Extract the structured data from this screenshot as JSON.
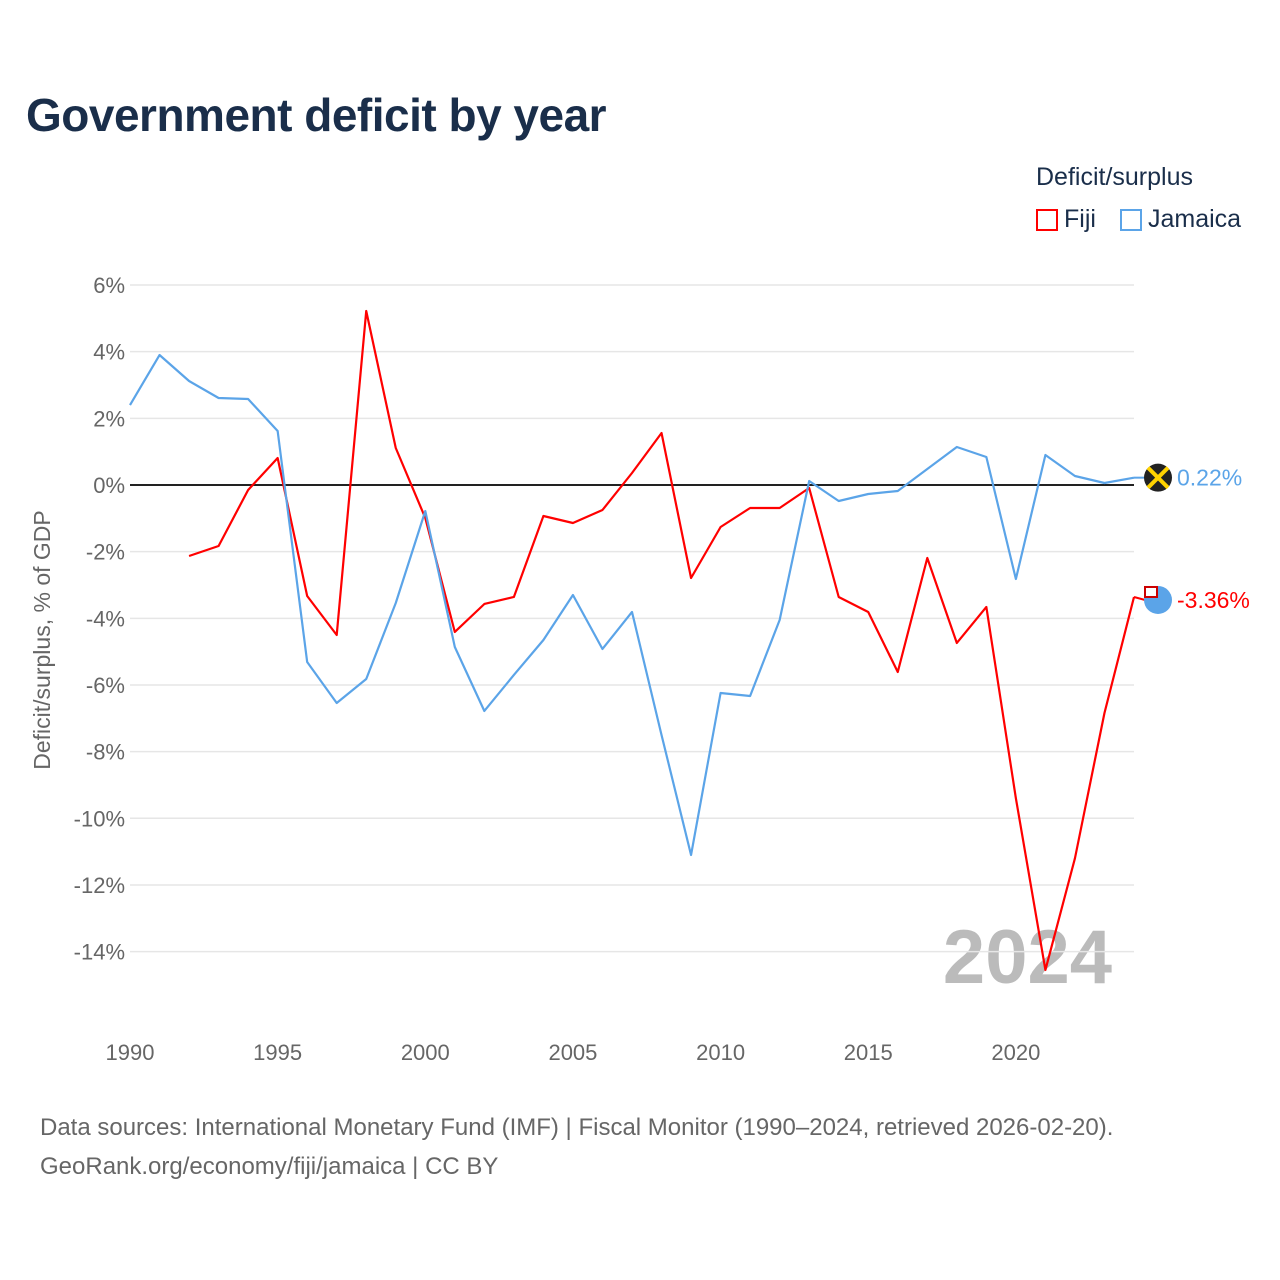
{
  "title": "Government deficit by year",
  "legend": {
    "title": "Deficit/surplus",
    "items": [
      {
        "name": "Fiji",
        "color": "#ff0000"
      },
      {
        "name": "Jamaica",
        "color": "#5ba4e8"
      }
    ]
  },
  "footer": {
    "line1": "Data sources: International Monetary Fund (IMF) | Fiscal Monitor (1990–2024, retrieved 2026-02-20).",
    "line2": "GeoRank.org/economy/fiji/jamaica | CC BY"
  },
  "chart_data": {
    "type": "line",
    "title": "Government deficit by year",
    "xlabel": "",
    "ylabel": "Deficit/surplus, % of GDP",
    "xlim": [
      1990,
      2024
    ],
    "ylim": [
      -16,
      6
    ],
    "yticks": [
      6,
      4,
      2,
      0,
      -2,
      -4,
      -6,
      -8,
      -10,
      -12,
      -14
    ],
    "ytick_labels": [
      "6%",
      "4%",
      "2%",
      "0%",
      "-2%",
      "-4%",
      "-6%",
      "-8%",
      "-10%",
      "-12%",
      "-14%"
    ],
    "xticks": [
      1990,
      1995,
      2000,
      2005,
      2010,
      2015,
      2020
    ],
    "xtick_labels": [
      "1990",
      "1995",
      "2000",
      "2005",
      "2010",
      "2015",
      "2020"
    ],
    "watermark": "2024",
    "grid": true,
    "legend_position": "top-right",
    "series": [
      {
        "name": "Fiji",
        "color": "#ff0000",
        "end_label": "-3.36%",
        "start_year": 1992,
        "values": [
          -2.13,
          -1.83,
          -0.15,
          0.81,
          -3.33,
          -4.5,
          5.22,
          1.11,
          -0.99,
          -4.41,
          -3.57,
          -3.36,
          -0.93,
          -1.14,
          -0.75,
          0.36,
          1.56,
          -2.79,
          -1.26,
          -0.69,
          -0.69,
          -0.09,
          -3.36,
          -3.81,
          -5.61,
          -2.19,
          -4.74,
          -3.66,
          -9.4,
          -14.55,
          -11.2,
          -6.84,
          -3.36
        ]
      },
      {
        "name": "Jamaica",
        "color": "#5ba4e8",
        "end_label": "0.22%",
        "start_year": 1990,
        "values": [
          2.4,
          3.9,
          3.12,
          2.61,
          2.58,
          1.62,
          -5.31,
          -6.54,
          -5.82,
          -3.54,
          -0.78,
          -4.86,
          -6.78,
          -5.7,
          -4.65,
          -3.3,
          -4.92,
          -3.81,
          -7.5,
          -11.1,
          -6.24,
          -6.33,
          -4.05,
          0.12,
          -0.48,
          -0.27,
          -0.18,
          0.48,
          1.14,
          0.84,
          -2.82,
          0.9,
          0.27,
          0.06,
          0.22
        ]
      }
    ]
  }
}
